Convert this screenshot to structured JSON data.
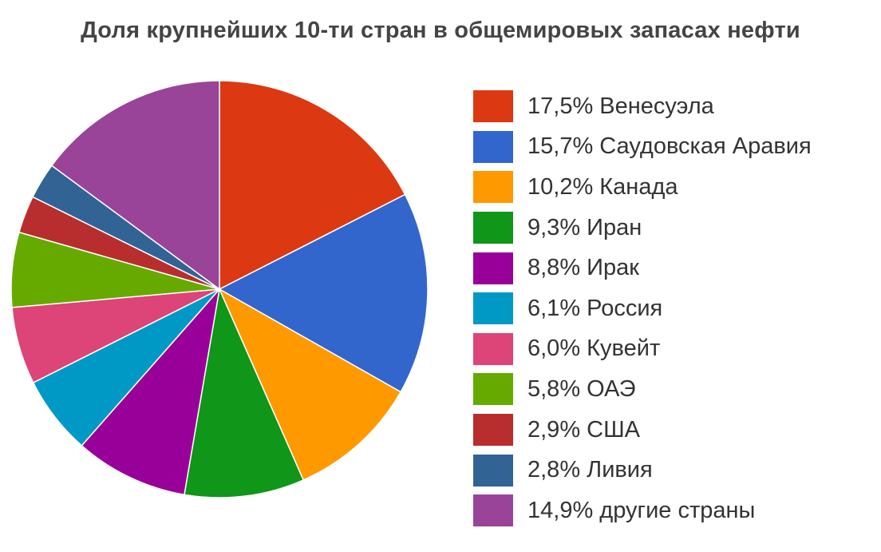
{
  "chart_data": {
    "type": "pie",
    "title": "Доля крупнейших 10-ти стран в общемировых запасах нефти",
    "slices": [
      {
        "label": "17,5% Венесуэла",
        "value": 17.5,
        "color": "#dc3912"
      },
      {
        "label": "15,7% Саудовская Аравия",
        "value": 15.7,
        "color": "#3366cc"
      },
      {
        "label": "10,2% Канада",
        "value": 10.2,
        "color": "#ff9900"
      },
      {
        "label": "9,3% Иран",
        "value": 9.3,
        "color": "#109618"
      },
      {
        "label": "8,8% Ирак",
        "value": 8.8,
        "color": "#990099"
      },
      {
        "label": "6,1% Россия",
        "value": 6.1,
        "color": "#0099c6"
      },
      {
        "label": "6,0% Кувейт",
        "value": 6.0,
        "color": "#dd4477"
      },
      {
        "label": "5,8% ОАЭ",
        "value": 5.8,
        "color": "#66aa00"
      },
      {
        "label": "2,9% США",
        "value": 2.9,
        "color": "#b82e2e"
      },
      {
        "label": "2,8% Ливия",
        "value": 2.8,
        "color": "#316395"
      },
      {
        "label": "14,9% другие страны",
        "value": 14.9,
        "color": "#994499"
      }
    ],
    "legend_position": "right"
  }
}
